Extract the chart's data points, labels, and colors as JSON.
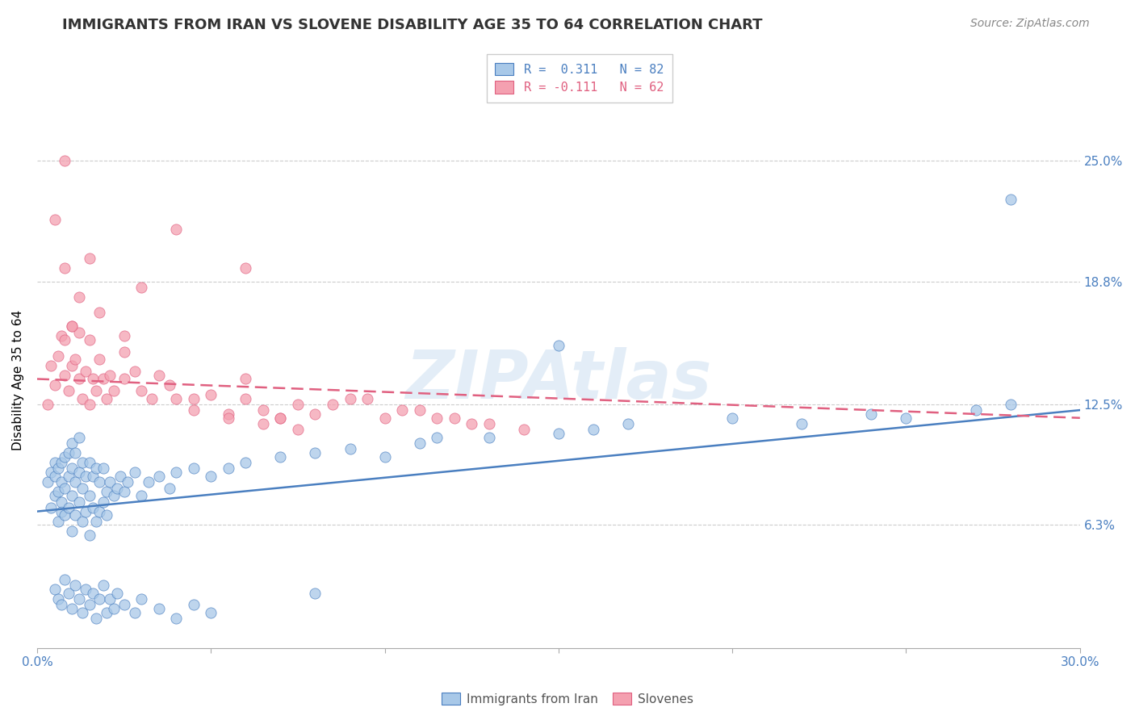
{
  "title": "IMMIGRANTS FROM IRAN VS SLOVENE DISABILITY AGE 35 TO 64 CORRELATION CHART",
  "source_text": "Source: ZipAtlas.com",
  "ylabel": "Disability Age 35 to 64",
  "xlim": [
    0.0,
    0.3
  ],
  "ylim": [
    0.0,
    0.275
  ],
  "xticks": [
    0.0,
    0.05,
    0.1,
    0.15,
    0.2,
    0.25,
    0.3
  ],
  "xticklabels": [
    "0.0%",
    "",
    "",
    "",
    "",
    "",
    "30.0%"
  ],
  "yticks": [
    0.063,
    0.125,
    0.188,
    0.25
  ],
  "yticklabels": [
    "6.3%",
    "12.5%",
    "18.8%",
    "25.0%"
  ],
  "watermark": "ZIPAtlas",
  "legend_r1": "R =  0.311   N = 82",
  "legend_r2": "R = -0.111   N = 62",
  "color_blue": "#a8c8e8",
  "color_pink": "#f4a0b0",
  "color_blue_line": "#4a7fc0",
  "color_pink_line": "#e06080",
  "color_blue_text": "#4a7fc0",
  "color_pink_text": "#e06080",
  "color_tick": "#4a7fc0",
  "blue_scatter_x": [
    0.003,
    0.004,
    0.004,
    0.005,
    0.005,
    0.005,
    0.006,
    0.006,
    0.006,
    0.007,
    0.007,
    0.007,
    0.007,
    0.008,
    0.008,
    0.008,
    0.009,
    0.009,
    0.009,
    0.01,
    0.01,
    0.01,
    0.01,
    0.011,
    0.011,
    0.011,
    0.012,
    0.012,
    0.012,
    0.013,
    0.013,
    0.013,
    0.014,
    0.014,
    0.015,
    0.015,
    0.015,
    0.016,
    0.016,
    0.017,
    0.017,
    0.018,
    0.018,
    0.019,
    0.019,
    0.02,
    0.02,
    0.021,
    0.022,
    0.023,
    0.024,
    0.025,
    0.026,
    0.028,
    0.03,
    0.032,
    0.035,
    0.038,
    0.04,
    0.045,
    0.05,
    0.055,
    0.06,
    0.07,
    0.08,
    0.09,
    0.1,
    0.11,
    0.13,
    0.15,
    0.16,
    0.17,
    0.2,
    0.22,
    0.24,
    0.25,
    0.27,
    0.28,
    0.15,
    0.115,
    0.08,
    0.28
  ],
  "blue_scatter_y": [
    0.085,
    0.072,
    0.09,
    0.078,
    0.088,
    0.095,
    0.065,
    0.08,
    0.092,
    0.07,
    0.085,
    0.075,
    0.095,
    0.068,
    0.082,
    0.098,
    0.072,
    0.088,
    0.1,
    0.06,
    0.078,
    0.092,
    0.105,
    0.068,
    0.085,
    0.1,
    0.075,
    0.09,
    0.108,
    0.065,
    0.082,
    0.095,
    0.07,
    0.088,
    0.058,
    0.078,
    0.095,
    0.072,
    0.088,
    0.065,
    0.092,
    0.07,
    0.085,
    0.075,
    0.092,
    0.068,
    0.08,
    0.085,
    0.078,
    0.082,
    0.088,
    0.08,
    0.085,
    0.09,
    0.078,
    0.085,
    0.088,
    0.082,
    0.09,
    0.092,
    0.088,
    0.092,
    0.095,
    0.098,
    0.1,
    0.102,
    0.098,
    0.105,
    0.108,
    0.11,
    0.112,
    0.115,
    0.118,
    0.115,
    0.12,
    0.118,
    0.122,
    0.125,
    0.155,
    0.108,
    0.028,
    0.23
  ],
  "blue_scatter_x_low": [
    0.005,
    0.006,
    0.007,
    0.008,
    0.009,
    0.01,
    0.011,
    0.012,
    0.013,
    0.014,
    0.015,
    0.016,
    0.017,
    0.018,
    0.019,
    0.02,
    0.021,
    0.022,
    0.023,
    0.025,
    0.028,
    0.03,
    0.035,
    0.04,
    0.045,
    0.05
  ],
  "blue_scatter_y_low": [
    0.03,
    0.025,
    0.022,
    0.035,
    0.028,
    0.02,
    0.032,
    0.025,
    0.018,
    0.03,
    0.022,
    0.028,
    0.015,
    0.025,
    0.032,
    0.018,
    0.025,
    0.02,
    0.028,
    0.022,
    0.018,
    0.025,
    0.02,
    0.015,
    0.022,
    0.018
  ],
  "pink_scatter_x": [
    0.003,
    0.004,
    0.005,
    0.006,
    0.007,
    0.008,
    0.008,
    0.009,
    0.01,
    0.01,
    0.011,
    0.012,
    0.012,
    0.013,
    0.014,
    0.015,
    0.016,
    0.017,
    0.018,
    0.019,
    0.02,
    0.021,
    0.022,
    0.025,
    0.028,
    0.03,
    0.033,
    0.038,
    0.04,
    0.045,
    0.05,
    0.055,
    0.06,
    0.065,
    0.07,
    0.075,
    0.08,
    0.09,
    0.1,
    0.11,
    0.12,
    0.13,
    0.14,
    0.06,
    0.07,
    0.025,
    0.015,
    0.01,
    0.008,
    0.012,
    0.018,
    0.025,
    0.035,
    0.045,
    0.055,
    0.065,
    0.075,
    0.085,
    0.095,
    0.105,
    0.115,
    0.125
  ],
  "pink_scatter_y": [
    0.125,
    0.145,
    0.135,
    0.15,
    0.16,
    0.14,
    0.158,
    0.132,
    0.145,
    0.165,
    0.148,
    0.138,
    0.162,
    0.128,
    0.142,
    0.125,
    0.138,
    0.132,
    0.148,
    0.138,
    0.128,
    0.14,
    0.132,
    0.138,
    0.142,
    0.132,
    0.128,
    0.135,
    0.128,
    0.122,
    0.13,
    0.12,
    0.128,
    0.122,
    0.118,
    0.125,
    0.12,
    0.128,
    0.118,
    0.122,
    0.118,
    0.115,
    0.112,
    0.138,
    0.118,
    0.152,
    0.158,
    0.165,
    0.195,
    0.18,
    0.172,
    0.16,
    0.14,
    0.128,
    0.118,
    0.115,
    0.112,
    0.125,
    0.128,
    0.122,
    0.118,
    0.115
  ],
  "pink_scatter_x_high": [
    0.005,
    0.008,
    0.015,
    0.03,
    0.04,
    0.06
  ],
  "pink_scatter_y_high": [
    0.22,
    0.25,
    0.2,
    0.185,
    0.215,
    0.195
  ],
  "blue_trend_x": [
    0.0,
    0.3
  ],
  "blue_trend_y": [
    0.07,
    0.122
  ],
  "pink_trend_x": [
    0.0,
    0.3
  ],
  "pink_trend_y": [
    0.138,
    0.118
  ],
  "title_fontsize": 13,
  "axis_label_fontsize": 11,
  "tick_fontsize": 11,
  "legend_fontsize": 11,
  "watermark_fontsize": 60,
  "source_fontsize": 10
}
